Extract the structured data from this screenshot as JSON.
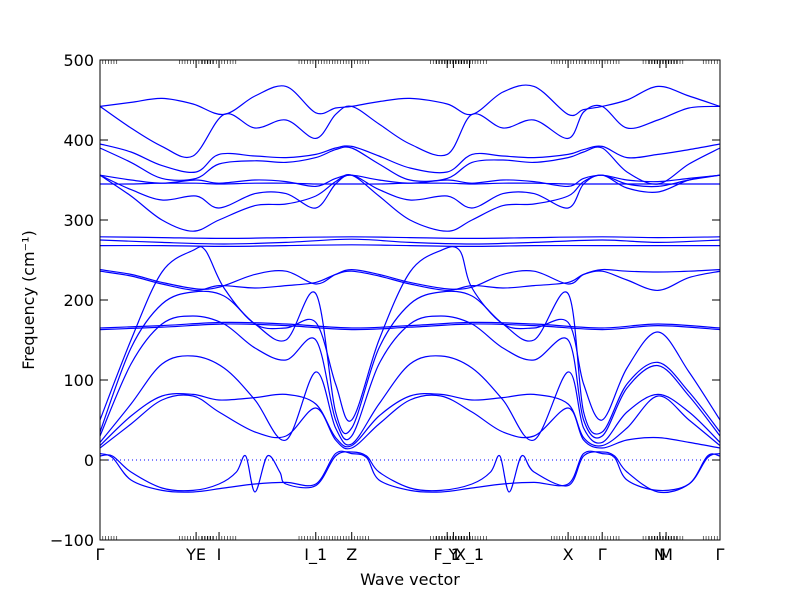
{
  "chart_data": {
    "type": "line",
    "title": "",
    "xlabel": "Wave vector",
    "ylabel": "Frequency (cm⁻¹)",
    "ylim": [
      -100,
      500
    ],
    "y_ticks": [
      -100,
      0,
      100,
      200,
      300,
      400,
      500
    ],
    "xlim": [
      0,
      1
    ],
    "grid": false,
    "line_color": "#0000ff",
    "zero_line_color": "#0000ff",
    "high_symmetry_points": [
      {
        "label": "Γ",
        "x": 0.0
      },
      {
        "label": "YE",
        "x": 0.155
      },
      {
        "label": "I",
        "x": 0.192
      },
      {
        "label": "I_1",
        "x": 0.348
      },
      {
        "label": "Z",
        "x": 0.406
      },
      {
        "label": "F_1",
        "x": 0.56
      },
      {
        "label": "Y",
        "x": 0.57
      },
      {
        "label": "X_1",
        "x": 0.596
      },
      {
        "label": "X",
        "x": 0.755
      },
      {
        "label": "Γ",
        "x": 0.81
      },
      {
        "label": "N",
        "x": 0.903
      },
      {
        "label": "M",
        "x": 0.913
      },
      {
        "label": "Γ",
        "x": 1.0
      }
    ],
    "series": [
      {
        "x": [
          0.0,
          0.05,
          0.1,
          0.15,
          0.2,
          0.25,
          0.3,
          0.348,
          0.38,
          0.406,
          0.45,
          0.5,
          0.56,
          0.6,
          0.65,
          0.7,
          0.755,
          0.78,
          0.81,
          0.85,
          0.9,
          0.95,
          1.0
        ],
        "y": [
          442,
          447,
          452,
          445,
          432,
          455,
          467,
          434,
          440,
          442,
          448,
          452,
          445,
          432,
          460,
          467,
          432,
          438,
          442,
          450,
          467,
          455,
          442
        ]
      },
      {
        "x": [
          0.0,
          0.05,
          0.1,
          0.15,
          0.2,
          0.25,
          0.3,
          0.348,
          0.38,
          0.406,
          0.45,
          0.5,
          0.56,
          0.6,
          0.65,
          0.7,
          0.755,
          0.78,
          0.81,
          0.85,
          0.9,
          0.95,
          1.0
        ],
        "y": [
          442,
          415,
          392,
          380,
          432,
          415,
          425,
          402,
          432,
          442,
          420,
          395,
          382,
          432,
          415,
          425,
          402,
          435,
          442,
          415,
          425,
          440,
          442
        ]
      },
      {
        "x": [
          0.0,
          0.05,
          0.1,
          0.155,
          0.192,
          0.25,
          0.3,
          0.348,
          0.38,
          0.406,
          0.45,
          0.5,
          0.56,
          0.6,
          0.65,
          0.7,
          0.755,
          0.78,
          0.81,
          0.85,
          0.9,
          0.95,
          1.0
        ],
        "y": [
          395,
          385,
          368,
          360,
          382,
          380,
          378,
          382,
          390,
          392,
          380,
          365,
          360,
          382,
          380,
          378,
          382,
          388,
          392,
          378,
          382,
          388,
          395
        ]
      },
      {
        "x": [
          0.0,
          0.05,
          0.1,
          0.155,
          0.192,
          0.25,
          0.3,
          0.348,
          0.38,
          0.406,
          0.45,
          0.5,
          0.56,
          0.6,
          0.65,
          0.7,
          0.755,
          0.78,
          0.81,
          0.85,
          0.9,
          0.95,
          1.0
        ],
        "y": [
          390,
          372,
          352,
          352,
          370,
          374,
          372,
          378,
          388,
          390,
          370,
          350,
          352,
          372,
          375,
          372,
          378,
          385,
          390,
          360,
          345,
          370,
          390
        ]
      },
      {
        "x": [
          0.0,
          0.05,
          0.1,
          0.155,
          0.192,
          0.25,
          0.3,
          0.348,
          0.38,
          0.406,
          0.45,
          0.5,
          0.56,
          0.6,
          0.65,
          0.7,
          0.755,
          0.78,
          0.81,
          0.85,
          0.9,
          0.95,
          1.0
        ],
        "y": [
          356,
          350,
          346,
          350,
          346,
          350,
          348,
          342,
          352,
          356,
          350,
          346,
          350,
          346,
          350,
          348,
          342,
          352,
          356,
          350,
          348,
          352,
          356
        ]
      },
      {
        "x": [
          0.0,
          0.05,
          0.1,
          0.155,
          0.192,
          0.25,
          0.3,
          0.348,
          0.38,
          0.406,
          0.45,
          0.5,
          0.56,
          0.6,
          0.65,
          0.7,
          0.755,
          0.78,
          0.81,
          0.85,
          0.9,
          0.95,
          1.0
        ],
        "y": [
          345,
          345,
          346,
          346,
          345,
          346,
          346,
          345,
          345,
          345,
          345,
          346,
          346,
          345,
          346,
          346,
          345,
          345,
          345,
          345,
          345,
          345,
          345
        ]
      },
      {
        "x": [
          0.0,
          0.05,
          0.1,
          0.155,
          0.192,
          0.25,
          0.3,
          0.348,
          0.38,
          0.406,
          0.45,
          0.5,
          0.56,
          0.6,
          0.65,
          0.7,
          0.755,
          0.78,
          0.81,
          0.85,
          0.9,
          0.95,
          1.0
        ],
        "y": [
          356,
          338,
          325,
          330,
          315,
          333,
          333,
          315,
          345,
          356,
          338,
          325,
          330,
          315,
          333,
          333,
          315,
          345,
          356,
          340,
          335,
          350,
          356
        ]
      },
      {
        "x": [
          0.0,
          0.05,
          0.1,
          0.15,
          0.192,
          0.25,
          0.3,
          0.348,
          0.38,
          0.406,
          0.45,
          0.5,
          0.56,
          0.6,
          0.65,
          0.7,
          0.755,
          0.78,
          0.81,
          0.85,
          0.9,
          0.95,
          1.0
        ],
        "y": [
          356,
          330,
          300,
          286,
          300,
          318,
          320,
          330,
          348,
          356,
          330,
          300,
          286,
          300,
          318,
          320,
          330,
          348,
          356,
          345,
          342,
          350,
          356
        ]
      },
      {
        "x": [
          0.0,
          0.1,
          0.2,
          0.3,
          0.406,
          0.5,
          0.6,
          0.7,
          0.81,
          0.9,
          1.0
        ],
        "y": [
          279,
          278,
          277,
          278,
          279,
          278,
          277,
          278,
          279,
          278,
          279
        ]
      },
      {
        "x": [
          0.0,
          0.1,
          0.2,
          0.3,
          0.406,
          0.5,
          0.6,
          0.7,
          0.81,
          0.9,
          1.0
        ],
        "y": [
          275,
          272,
          270,
          272,
          276,
          272,
          270,
          272,
          275,
          272,
          275
        ]
      },
      {
        "x": [
          0.0,
          0.1,
          0.2,
          0.3,
          0.406,
          0.5,
          0.6,
          0.7,
          0.81,
          0.9,
          1.0
        ],
        "y": [
          268,
          268,
          267,
          268,
          269,
          268,
          267,
          268,
          268,
          268,
          268
        ]
      },
      {
        "x": [
          0.0,
          0.05,
          0.1,
          0.155,
          0.192,
          0.25,
          0.3,
          0.348,
          0.38,
          0.406,
          0.45,
          0.5,
          0.56,
          0.6,
          0.65,
          0.7,
          0.755,
          0.78,
          0.81,
          0.85,
          0.9,
          0.95,
          1.0
        ],
        "y": [
          238,
          232,
          222,
          214,
          216,
          232,
          236,
          220,
          232,
          238,
          232,
          222,
          214,
          216,
          232,
          236,
          220,
          232,
          238,
          236,
          235,
          236,
          238
        ]
      },
      {
        "x": [
          0.0,
          0.05,
          0.1,
          0.155,
          0.192,
          0.25,
          0.3,
          0.348,
          0.38,
          0.406,
          0.45,
          0.5,
          0.56,
          0.6,
          0.65,
          0.7,
          0.755,
          0.78,
          0.81,
          0.85,
          0.9,
          0.95,
          1.0
        ],
        "y": [
          236,
          230,
          220,
          212,
          218,
          215,
          218,
          222,
          232,
          236,
          230,
          220,
          212,
          218,
          215,
          218,
          222,
          232,
          236,
          225,
          212,
          228,
          236
        ]
      },
      {
        "x": [
          0.0,
          0.1,
          0.2,
          0.3,
          0.406,
          0.5,
          0.6,
          0.7,
          0.81,
          0.9,
          1.0
        ],
        "y": [
          165,
          168,
          172,
          170,
          165,
          168,
          172,
          170,
          165,
          170,
          165
        ]
      },
      {
        "x": [
          0.0,
          0.1,
          0.2,
          0.3,
          0.406,
          0.5,
          0.6,
          0.7,
          0.81,
          0.9,
          1.0
        ],
        "y": [
          163,
          166,
          170,
          168,
          163,
          166,
          170,
          168,
          163,
          168,
          163
        ]
      },
      {
        "x": [
          0.0,
          0.05,
          0.1,
          0.15,
          0.17,
          0.2,
          0.25,
          0.3,
          0.348,
          0.38,
          0.406,
          0.45,
          0.5,
          0.55,
          0.58,
          0.6,
          0.65,
          0.7,
          0.755,
          0.78,
          0.81,
          0.85,
          0.9,
          0.95,
          1.0
        ],
        "y": [
          50,
          150,
          235,
          262,
          262,
          215,
          170,
          165,
          172,
          95,
          50,
          150,
          235,
          262,
          262,
          215,
          170,
          165,
          172,
          95,
          50,
          115,
          160,
          110,
          50
        ]
      },
      {
        "x": [
          0.0,
          0.05,
          0.1,
          0.15,
          0.2,
          0.25,
          0.3,
          0.348,
          0.38,
          0.406,
          0.45,
          0.5,
          0.55,
          0.6,
          0.65,
          0.7,
          0.755,
          0.78,
          0.81,
          0.85,
          0.9,
          0.95,
          1.0
        ],
        "y": [
          35,
          140,
          195,
          210,
          205,
          170,
          150,
          208,
          60,
          40,
          140,
          195,
          210,
          205,
          170,
          150,
          208,
          60,
          35,
          95,
          122,
          85,
          35
        ]
      },
      {
        "x": [
          0.0,
          0.05,
          0.1,
          0.15,
          0.2,
          0.25,
          0.3,
          0.348,
          0.38,
          0.406,
          0.45,
          0.5,
          0.55,
          0.6,
          0.65,
          0.7,
          0.755,
          0.78,
          0.81,
          0.85,
          0.9,
          0.95,
          1.0
        ],
        "y": [
          30,
          120,
          170,
          180,
          170,
          140,
          125,
          150,
          50,
          30,
          120,
          170,
          180,
          170,
          140,
          125,
          150,
          50,
          30,
          90,
          118,
          80,
          30
        ]
      },
      {
        "x": [
          0.0,
          0.05,
          0.1,
          0.15,
          0.2,
          0.25,
          0.3,
          0.348,
          0.38,
          0.406,
          0.45,
          0.5,
          0.55,
          0.6,
          0.65,
          0.7,
          0.755,
          0.78,
          0.81,
          0.85,
          0.9,
          0.95,
          1.0
        ],
        "y": [
          22,
          70,
          120,
          130,
          115,
          75,
          25,
          110,
          40,
          20,
          70,
          120,
          130,
          115,
          75,
          25,
          110,
          40,
          22,
          60,
          82,
          60,
          22
        ]
      },
      {
        "x": [
          0.0,
          0.05,
          0.1,
          0.15,
          0.192,
          0.25,
          0.3,
          0.348,
          0.38,
          0.406,
          0.45,
          0.5,
          0.55,
          0.6,
          0.65,
          0.7,
          0.755,
          0.78,
          0.81,
          0.85,
          0.9,
          0.95,
          1.0
        ],
        "y": [
          18,
          55,
          80,
          82,
          75,
          78,
          82,
          70,
          28,
          18,
          55,
          80,
          82,
          75,
          78,
          82,
          70,
          28,
          18,
          40,
          80,
          50,
          18
        ]
      },
      {
        "x": [
          0.0,
          0.05,
          0.1,
          0.15,
          0.192,
          0.25,
          0.3,
          0.348,
          0.38,
          0.406,
          0.45,
          0.5,
          0.55,
          0.6,
          0.65,
          0.7,
          0.755,
          0.78,
          0.81,
          0.85,
          0.9,
          0.95,
          1.0
        ],
        "y": [
          15,
          45,
          75,
          80,
          60,
          35,
          30,
          65,
          25,
          15,
          45,
          75,
          80,
          60,
          35,
          30,
          65,
          25,
          15,
          25,
          28,
          22,
          15
        ]
      },
      {
        "x": [
          0.0,
          0.02,
          0.05,
          0.1,
          0.15,
          0.192,
          0.22,
          0.235,
          0.25,
          0.27,
          0.29,
          0.3,
          0.348,
          0.38,
          0.406,
          0.43,
          0.45,
          0.5,
          0.55,
          0.6,
          0.63,
          0.645,
          0.66,
          0.68,
          0.7,
          0.755,
          0.78,
          0.81,
          0.83,
          0.85,
          0.9,
          0.95,
          0.98,
          1.0
        ],
        "y": [
          5,
          5,
          -15,
          -35,
          -38,
          -30,
          -15,
          5,
          -40,
          5,
          -15,
          -30,
          -32,
          5,
          10,
          5,
          -15,
          -35,
          -38,
          -30,
          -15,
          5,
          -40,
          5,
          -15,
          -32,
          5,
          10,
          5,
          -15,
          -40,
          -30,
          5,
          5
        ]
      },
      {
        "x": [
          0.0,
          0.02,
          0.05,
          0.1,
          0.15,
          0.2,
          0.25,
          0.3,
          0.348,
          0.38,
          0.406,
          0.43,
          0.45,
          0.5,
          0.55,
          0.6,
          0.65,
          0.7,
          0.755,
          0.78,
          0.81,
          0.83,
          0.85,
          0.9,
          0.95,
          0.98,
          1.0
        ],
        "y": [
          8,
          3,
          -25,
          -38,
          -40,
          -35,
          -30,
          -28,
          -30,
          8,
          8,
          3,
          -25,
          -38,
          -40,
          -35,
          -30,
          -28,
          -30,
          8,
          8,
          3,
          -25,
          -38,
          -30,
          3,
          8
        ]
      }
    ]
  }
}
